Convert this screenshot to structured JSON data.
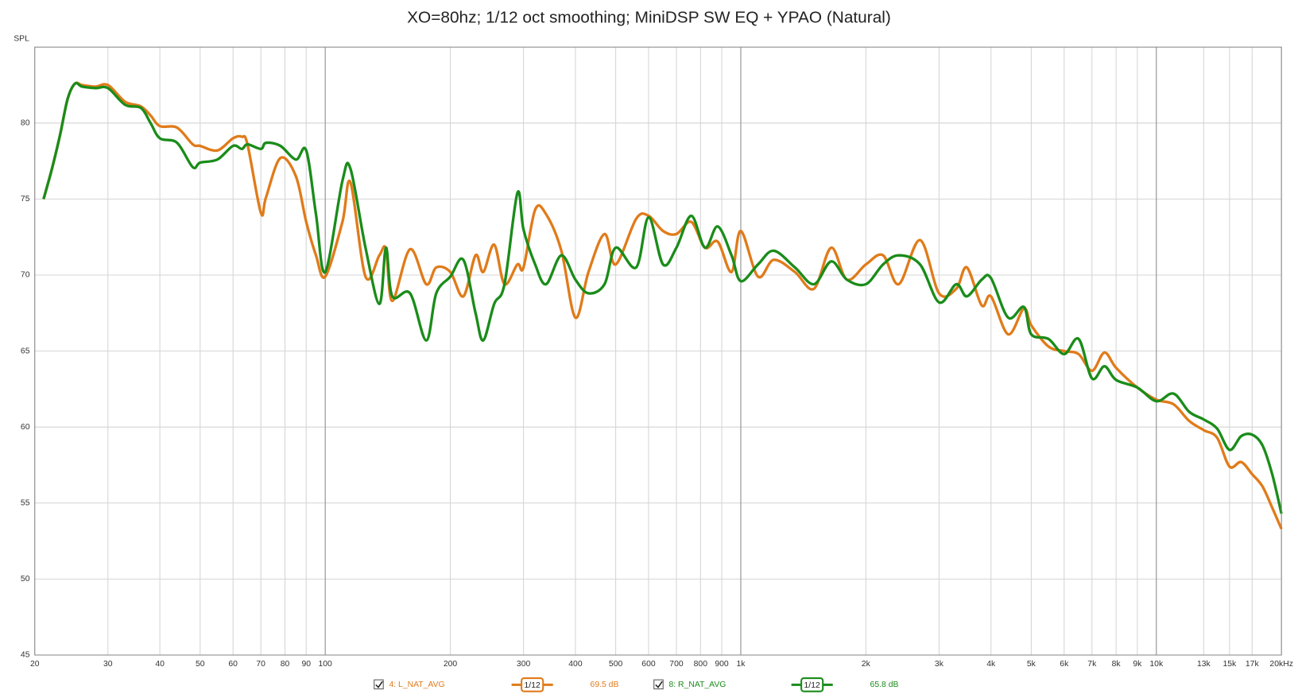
{
  "chart_data": {
    "type": "line",
    "title": "XO=80hz; 1/12 oct smoothing; MiniDSP SW EQ + YPAO (Natural)",
    "y_label": "SPL",
    "xscale": "log",
    "grid": true,
    "xlim": [
      20,
      20000
    ],
    "ylim": [
      45,
      85
    ],
    "yticks": [
      45,
      50,
      55,
      60,
      65,
      70,
      75,
      80
    ],
    "xticks": [
      20,
      30,
      40,
      50,
      60,
      70,
      80,
      90,
      100,
      200,
      300,
      400,
      500,
      600,
      700,
      800,
      900,
      {
        "value": 1000,
        "label": "1k"
      },
      {
        "value": 2000,
        "label": "2k"
      },
      {
        "value": 3000,
        "label": "3k"
      },
      {
        "value": 4000,
        "label": "4k"
      },
      {
        "value": 5000,
        "label": "5k"
      },
      {
        "value": 6000,
        "label": "6k"
      },
      {
        "value": 7000,
        "label": "7k"
      },
      {
        "value": 8000,
        "label": "8k"
      },
      {
        "value": 9000,
        "label": "9k"
      },
      {
        "value": 10000,
        "label": "10k"
      },
      {
        "value": 13000,
        "label": "13k"
      },
      {
        "value": 15000,
        "label": "15k"
      },
      {
        "value": 17000,
        "label": "17k"
      },
      {
        "value": 20000,
        "label": "20kHz"
      }
    ],
    "x": [
      21,
      22,
      23,
      24,
      25,
      26,
      28,
      30,
      33,
      36,
      38,
      40,
      44,
      48,
      50,
      55,
      60,
      63,
      65,
      70,
      72,
      78,
      85,
      90,
      95,
      100,
      110,
      115,
      125,
      135,
      140,
      145,
      160,
      175,
      185,
      200,
      215,
      230,
      240,
      255,
      270,
      290,
      300,
      320,
      340,
      370,
      400,
      430,
      470,
      500,
      560,
      600,
      650,
      700,
      760,
      820,
      880,
      950,
      1000,
      1100,
      1200,
      1350,
      1500,
      1650,
      1800,
      2000,
      2200,
      2400,
      2700,
      3000,
      3300,
      3500,
      3800,
      4000,
      4400,
      4800,
      5000,
      5500,
      6000,
      6500,
      7000,
      7500,
      8000,
      9000,
      10000,
      11000,
      12000,
      13000,
      14000,
      15000,
      16000,
      17000,
      18000,
      19000,
      20000
    ],
    "series": [
      {
        "name": "4: L_NAT_AVG",
        "color": "#e07b1a",
        "smoothing": "1/12",
        "level": "69.5 dB",
        "values": [
          75.0,
          77.0,
          79.2,
          81.6,
          82.6,
          82.5,
          82.4,
          82.5,
          81.4,
          81.1,
          80.5,
          79.8,
          79.7,
          78.6,
          78.5,
          78.2,
          79.0,
          79.1,
          78.6,
          74.1,
          75.1,
          77.7,
          76.5,
          73.5,
          71.3,
          69.9,
          73.5,
          76.1,
          69.9,
          71.3,
          71.7,
          68.3,
          71.7,
          69.4,
          70.5,
          70.2,
          68.6,
          71.3,
          70.2,
          72.0,
          69.4,
          70.7,
          70.5,
          74.3,
          74.0,
          71.6,
          67.2,
          70.2,
          72.7,
          70.7,
          73.7,
          73.9,
          72.9,
          72.7,
          73.5,
          71.8,
          72.2,
          70.2,
          72.9,
          69.9,
          71.0,
          70.2,
          69.1,
          71.8,
          69.7,
          70.7,
          71.3,
          69.4,
          72.3,
          68.8,
          69.1,
          70.5,
          68.0,
          68.6,
          66.1,
          67.8,
          66.7,
          65.3,
          65.0,
          64.8,
          63.7,
          64.9,
          63.9,
          62.6,
          61.8,
          61.5,
          60.4,
          59.8,
          59.3,
          57.4,
          57.7,
          56.9,
          56.1,
          54.7,
          53.3
        ]
      },
      {
        "name": "8: R_NAT_AVG",
        "color": "#1a8c1a",
        "smoothing": "1/12",
        "level": "65.8 dB",
        "values": [
          75.0,
          77.0,
          79.2,
          81.6,
          82.6,
          82.4,
          82.3,
          82.3,
          81.2,
          81.0,
          80.0,
          79.0,
          78.7,
          77.1,
          77.4,
          77.6,
          78.5,
          78.3,
          78.6,
          78.3,
          78.7,
          78.5,
          77.6,
          78.2,
          74.0,
          70.2,
          76.2,
          77.0,
          71.8,
          68.1,
          71.8,
          68.6,
          68.8,
          65.7,
          68.8,
          69.9,
          71.0,
          67.5,
          65.7,
          68.1,
          69.4,
          75.4,
          73.0,
          70.7,
          69.4,
          71.3,
          69.7,
          68.8,
          69.4,
          71.8,
          70.5,
          73.8,
          70.7,
          71.8,
          73.9,
          71.8,
          73.2,
          71.3,
          69.6,
          70.7,
          71.6,
          70.5,
          69.4,
          70.9,
          69.7,
          69.4,
          70.7,
          71.3,
          70.7,
          68.2,
          69.4,
          68.6,
          69.7,
          69.8,
          67.2,
          67.9,
          66.1,
          65.8,
          64.8,
          65.8,
          63.2,
          64.0,
          63.1,
          62.6,
          61.7,
          62.2,
          61.0,
          60.5,
          59.9,
          58.5,
          59.4,
          59.5,
          58.8,
          56.9,
          54.3
        ]
      }
    ]
  }
}
